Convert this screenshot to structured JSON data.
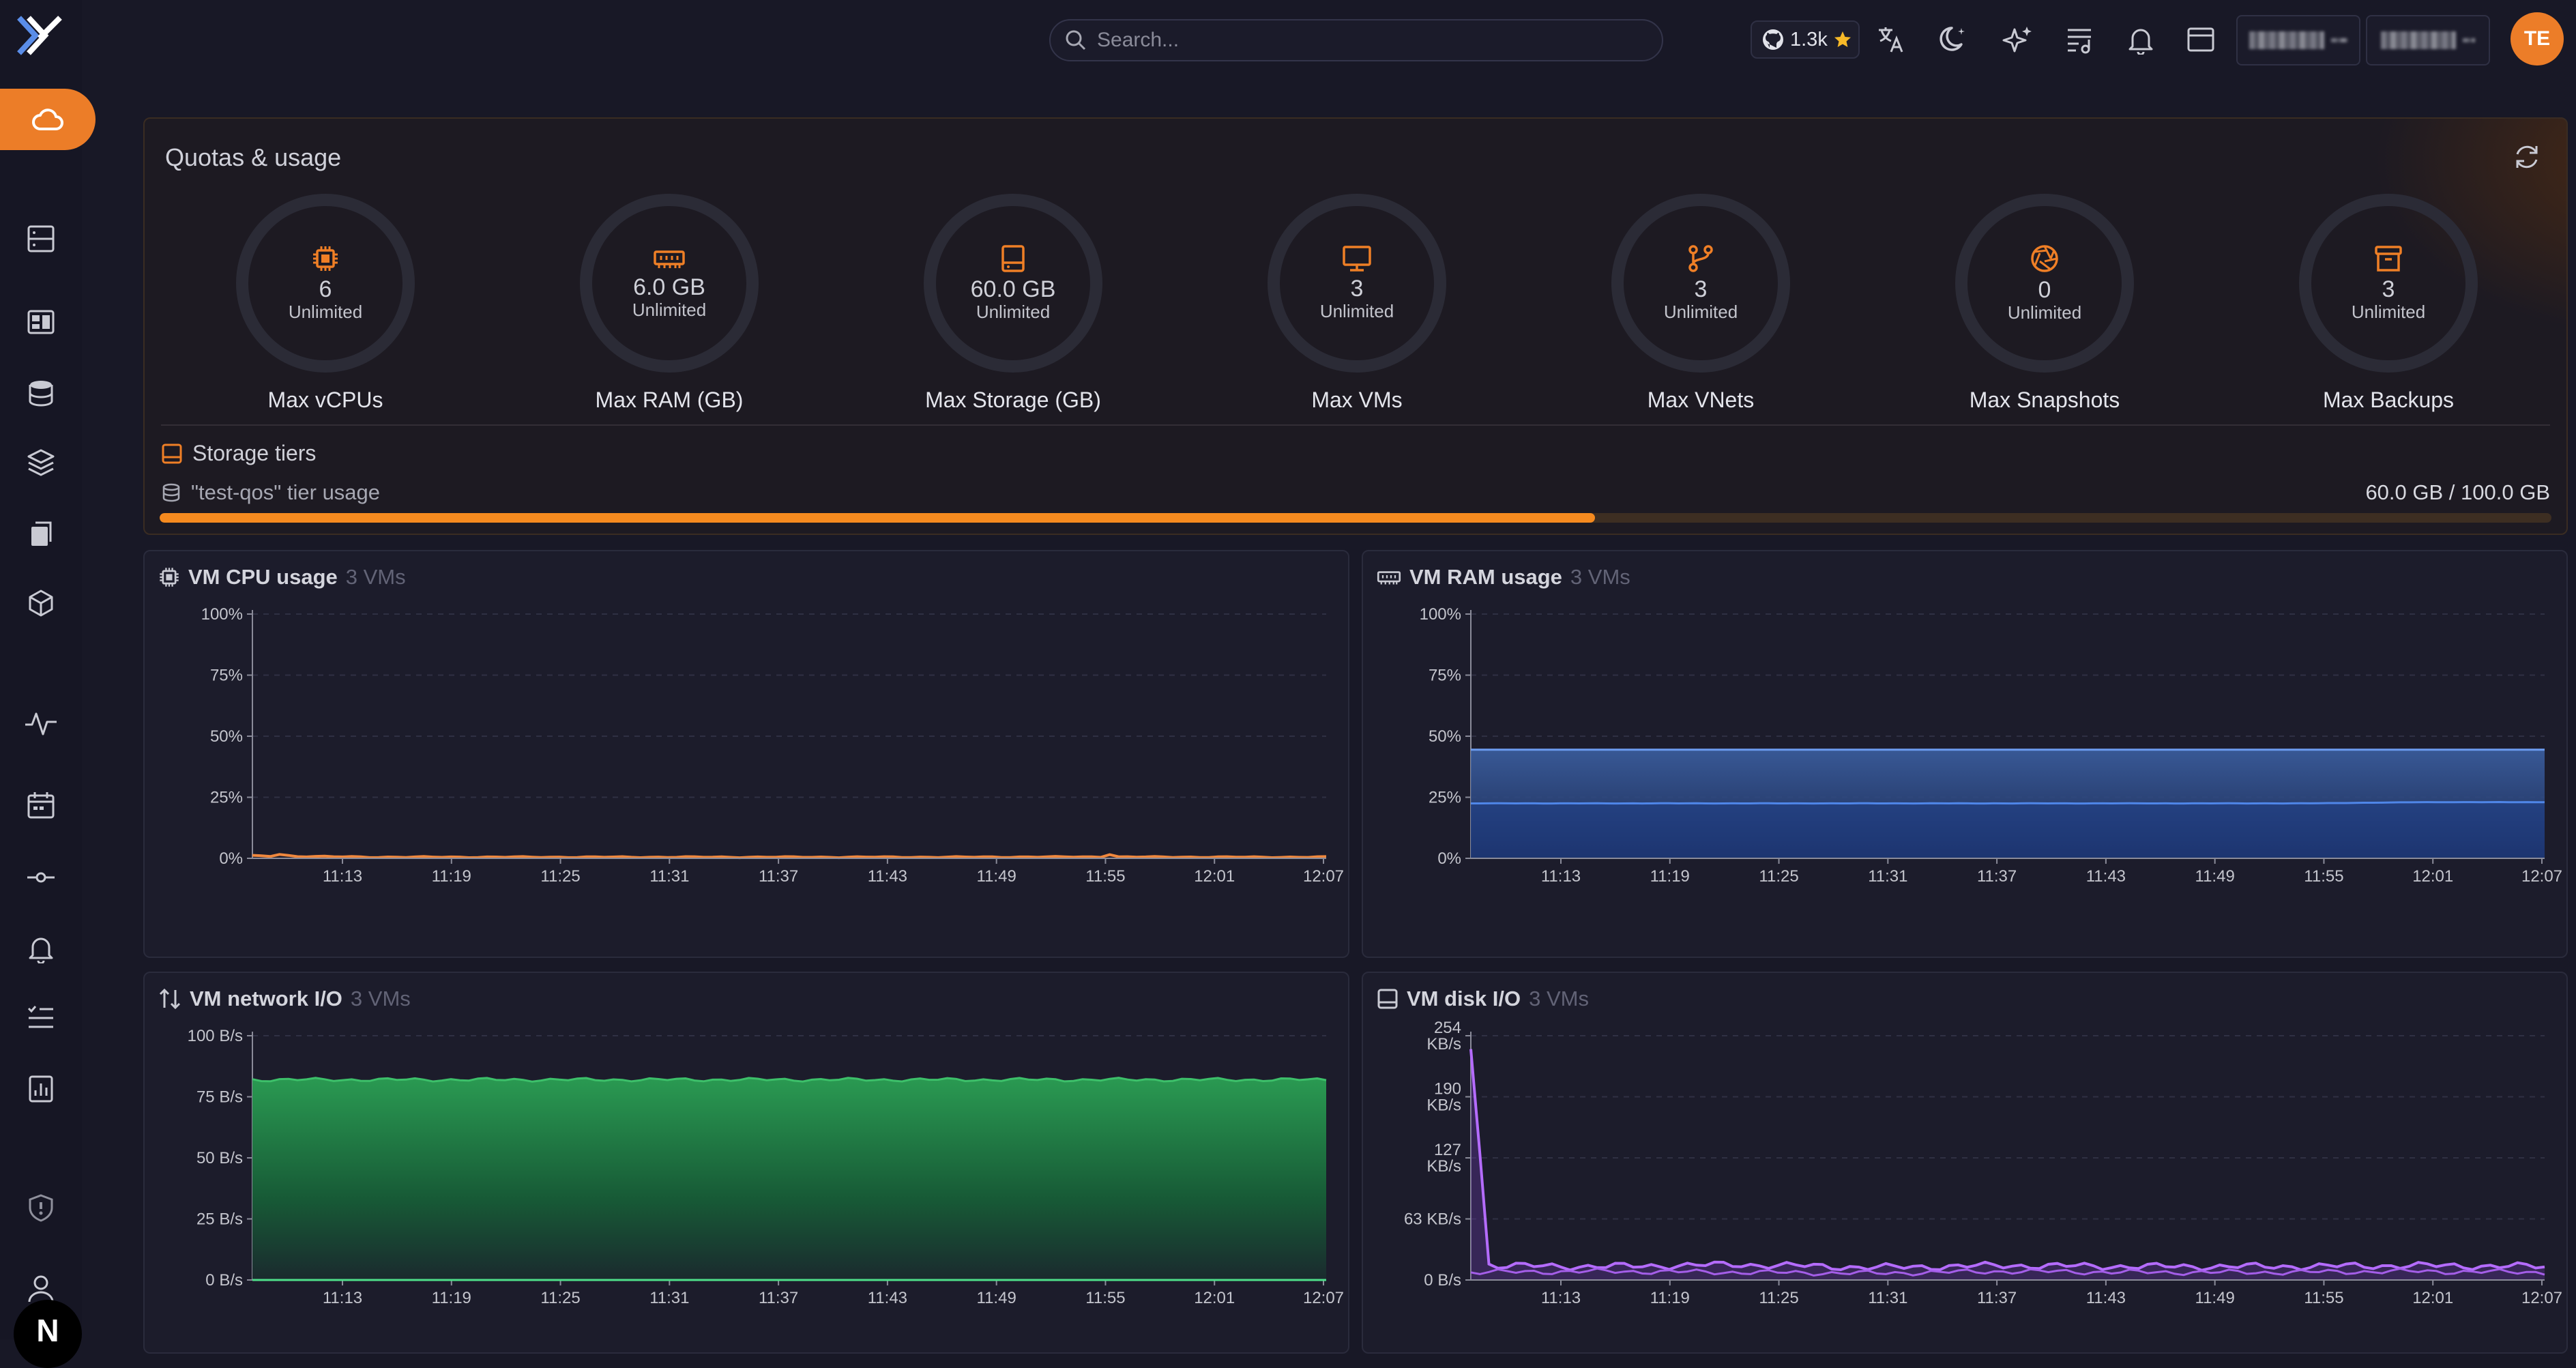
{
  "topbar": {
    "search_placeholder": "Search...",
    "github_stars": "1.3k",
    "user_initials": "TE",
    "icons": [
      "translate-icon",
      "theme-moon-icon",
      "sparkles-icon",
      "list-music-icon",
      "bell-icon",
      "layout-icon"
    ]
  },
  "sidebar": {
    "active": "cloud-icon",
    "icons": [
      "cloud-icon",
      "server-icon",
      "dashboard-icon",
      "database-icon",
      "layers-icon",
      "copy-icon",
      "cube-icon",
      "activity-icon",
      "calendar-icon",
      "commit-icon",
      "bell-icon",
      "list-todo-icon",
      "report-icon",
      "shield-icon",
      "user-icon"
    ],
    "bottom_badge": "N"
  },
  "quotas": {
    "title": "Quotas & usage",
    "gauges": [
      {
        "icon": "cpu-icon",
        "value": "6",
        "sub": "Unlimited",
        "label": "Max vCPUs"
      },
      {
        "icon": "memory-icon",
        "value": "6.0 GB",
        "sub": "Unlimited",
        "label": "Max RAM (GB)"
      },
      {
        "icon": "hard-drive-icon",
        "value": "60.0 GB",
        "sub": "Unlimited",
        "label": "Max Storage (GB)"
      },
      {
        "icon": "monitor-icon",
        "value": "3",
        "sub": "Unlimited",
        "label": "Max VMs"
      },
      {
        "icon": "git-branch-icon",
        "value": "3",
        "sub": "Unlimited",
        "label": "Max VNets"
      },
      {
        "icon": "aperture-icon",
        "value": "0",
        "sub": "Unlimited",
        "label": "Max Snapshots"
      },
      {
        "icon": "archive-icon",
        "value": "3",
        "sub": "Unlimited",
        "label": "Max Backups"
      }
    ],
    "storage_tiers": {
      "title": "Storage tiers",
      "tier_label": "\"test-qos\" tier usage",
      "usage_text": "60.0 GB / 100.0 GB",
      "used_fraction": 0.6
    }
  },
  "cards": {
    "cpu": {
      "title": "VM CPU usage",
      "count": "3 VMs"
    },
    "ram": {
      "title": "VM RAM usage",
      "count": "3 VMs"
    },
    "net": {
      "title": "VM network I/O",
      "count": "3 VMs"
    },
    "disk": {
      "title": "VM disk I/O",
      "count": "3 VMs"
    }
  },
  "colors": {
    "accent": "#ec7d28",
    "cpu": "#f0883e",
    "ram": "#4f86e8",
    "net": "#2ea65a",
    "disk": "#a45ee8"
  },
  "chart_data": [
    {
      "id": "cpu",
      "type": "line",
      "x": [
        "11:13",
        "11:19",
        "11:25",
        "11:31",
        "11:37",
        "11:43",
        "11:49",
        "11:55",
        "12:01",
        "12:07"
      ],
      "y_ticks": [
        "0%",
        "25%",
        "50%",
        "75%",
        "100%"
      ],
      "ylim": [
        0,
        100
      ],
      "series": [
        {
          "values": [
            1,
            0.5,
            0.5,
            0.5,
            0.5,
            0.5,
            0.5,
            0.6,
            0.5,
            0.5
          ]
        }
      ]
    },
    {
      "id": "ram",
      "type": "area",
      "x": [
        "11:13",
        "11:19",
        "11:25",
        "11:31",
        "11:37",
        "11:43",
        "11:49",
        "11:55",
        "12:01",
        "12:07"
      ],
      "y_ticks": [
        "0%",
        "25%",
        "50%",
        "75%",
        "100%"
      ],
      "ylim": [
        0,
        100
      ],
      "series": [
        {
          "values": [
            44.5,
            44.5,
            44.5,
            44.5,
            44.5,
            44.5,
            44.5,
            44.5,
            44.5,
            44.5
          ]
        },
        {
          "values": [
            22.5,
            22.5,
            22.5,
            22.5,
            22.5,
            22.5,
            22.5,
            22.5,
            23,
            23
          ]
        }
      ]
    },
    {
      "id": "net",
      "type": "area",
      "x": [
        "11:13",
        "11:19",
        "11:25",
        "11:31",
        "11:37",
        "11:43",
        "11:49",
        "11:55",
        "12:01",
        "12:07"
      ],
      "y_ticks": [
        "0 B/s",
        "25 B/s",
        "50 B/s",
        "75 B/s",
        "100 B/s"
      ],
      "ylim": [
        0,
        100
      ],
      "series": [
        {
          "values": [
            82,
            82,
            82,
            82,
            82,
            82,
            82,
            82,
            82,
            82
          ]
        }
      ]
    },
    {
      "id": "disk",
      "type": "line",
      "x": [
        "11:13",
        "11:19",
        "11:25",
        "11:31",
        "11:37",
        "11:43",
        "11:49",
        "11:55",
        "12:01",
        "12:07"
      ],
      "y_ticks": [
        "0 B/s",
        "63 KB/s",
        "127 KB/s",
        "190 KB/s",
        "254 KB/s"
      ],
      "ylim": [
        0,
        254
      ],
      "series": [
        {
          "values": [
            240,
            15,
            14,
            16,
            13,
            15,
            14,
            14,
            15,
            14
          ]
        },
        {
          "values": [
            10,
            8,
            9,
            8,
            7,
            9,
            8,
            8,
            9,
            8
          ]
        }
      ]
    }
  ]
}
